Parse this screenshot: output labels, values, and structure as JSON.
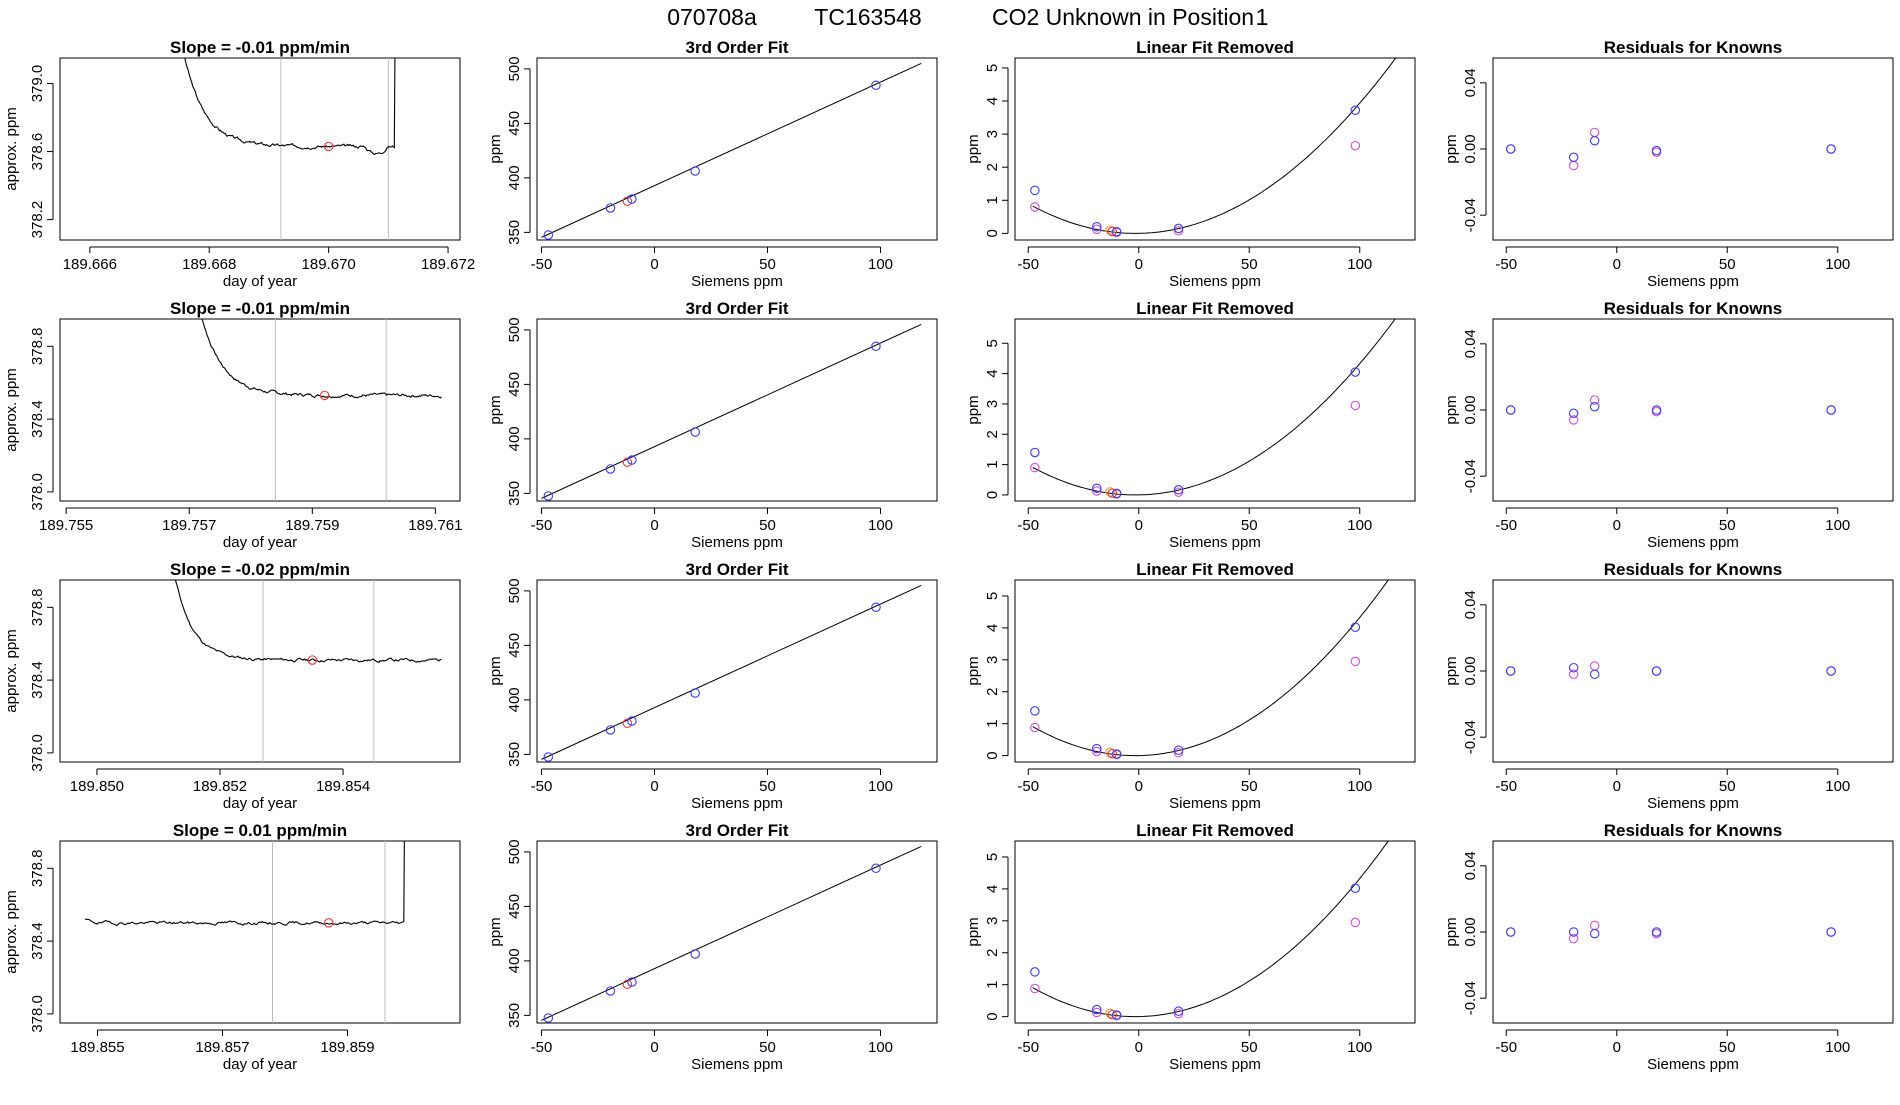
{
  "header": {
    "date": "070708a",
    "tank": "TC163548",
    "label": "CO2 Unknown in Position",
    "position": "1"
  },
  "colors": {
    "trace": "#000000",
    "vline": "#bdbdbd",
    "unknown": "#e53935",
    "known": "#3b3bf0",
    "residual_alt": "#d34fd3",
    "curve": "#000000",
    "orange": "#f0a030"
  },
  "chart_data": [
    {
      "type": "line",
      "title": "Slope =  -0.01  ppm/min",
      "xlabel": "day of year",
      "ylabel": "approx. ppm",
      "xlim": [
        189.6655,
        189.6722
      ],
      "ylim": [
        378.08,
        379.15
      ],
      "xticks": [
        189.666,
        189.668,
        189.67,
        189.672
      ],
      "xtick_labels": [
        "189.666",
        "189.668",
        "189.670",
        "189.672"
      ],
      "yticks": [
        378.2,
        378.6,
        379.0
      ],
      "ytick_labels": [
        "378.2",
        "378.6",
        "379.0"
      ],
      "vlines": [
        189.6692,
        189.671
      ],
      "point": [
        189.67,
        378.63
      ],
      "trace": {
        "start": 189.6675,
        "end": 189.6711,
        "startLevel": 379.3,
        "level": 378.63,
        "tau": 0.00035,
        "noise": 0.008,
        "seed": 3,
        "rise_at": 189.6711,
        "dip": [
          189.6706,
          189.671,
          -0.04
        ]
      }
    },
    {
      "type": "line",
      "title": "Slope =  -0.01  ppm/min",
      "xlabel": "day of year",
      "ylabel": "approx. ppm",
      "xlim": [
        189.7549,
        189.7614
      ],
      "ylim": [
        377.95,
        378.95
      ],
      "xticks": [
        189.755,
        189.757,
        189.759,
        189.761
      ],
      "xtick_labels": [
        "189.755",
        "189.757",
        "189.759",
        "189.761"
      ],
      "yticks": [
        378.0,
        378.4,
        378.8
      ],
      "ytick_labels": [
        "378.0",
        "378.4",
        "378.8"
      ],
      "vlines": [
        189.7584,
        189.7602
      ],
      "point": [
        189.7592,
        378.53
      ],
      "trace": {
        "start": 189.757,
        "end": 189.7611,
        "startLevel": 379.3,
        "level": 378.53,
        "tau": 0.00035,
        "noise": 0.008,
        "seed": 7,
        "rise_at": null,
        "dip": null
      }
    },
    {
      "type": "line",
      "title": "Slope =  -0.02  ppm/min",
      "xlabel": "day of year",
      "ylabel": "approx. ppm",
      "xlim": [
        189.8494,
        189.8559
      ],
      "ylim": [
        377.95,
        378.95
      ],
      "xticks": [
        189.85,
        189.852,
        189.854
      ],
      "xtick_labels": [
        "189.850",
        "189.852",
        "189.854"
      ],
      "yticks": [
        378.0,
        378.4,
        378.8
      ],
      "ytick_labels": [
        "378.0",
        "378.4",
        "378.8"
      ],
      "vlines": [
        189.8527,
        189.8545
      ],
      "point": [
        189.8535,
        378.51
      ],
      "trace": {
        "start": 189.8511,
        "end": 189.8556,
        "startLevel": 379.3,
        "level": 378.51,
        "tau": 0.0003,
        "noise": 0.008,
        "seed": 11,
        "rise_at": null,
        "dip": null
      }
    },
    {
      "type": "line",
      "title": "Slope =  0.01  ppm/min",
      "xlabel": "day of year",
      "ylabel": "approx. ppm",
      "xlim": [
        189.8544,
        189.8608
      ],
      "ylim": [
        377.95,
        378.95
      ],
      "xticks": [
        189.855,
        189.857,
        189.859
      ],
      "xtick_labels": [
        "189.855",
        "189.857",
        "189.859"
      ],
      "yticks": [
        378.0,
        378.4,
        378.8
      ],
      "ytick_labels": [
        "378.0",
        "378.4",
        "378.8"
      ],
      "vlines": [
        189.8578,
        189.8596
      ],
      "point": [
        189.8587,
        378.5
      ],
      "trace": {
        "start": 189.8548,
        "end": 189.8599,
        "startLevel": 378.52,
        "level": 378.5,
        "tau": 0.0001,
        "noise": 0.008,
        "seed": 19,
        "rise_at": 189.8599,
        "dip": null
      }
    },
    {
      "type": "scatter",
      "title": "3rd Order Fit",
      "xlabel": "Siemens ppm",
      "ylabel": "ppm",
      "xlim": [
        -52,
        125
      ],
      "ylim": [
        343,
        510
      ],
      "xticks": [
        -50,
        0,
        50,
        100
      ],
      "yticks": [
        350,
        400,
        450,
        500
      ],
      "line": [
        [
          -50,
          345.4
        ],
        [
          118,
          505
        ]
      ],
      "knowns": [
        [
          -47,
          347.6
        ],
        [
          -19.5,
          372.4
        ],
        [
          -10,
          380.6
        ],
        [
          18,
          406.3
        ],
        [
          98,
          485
        ]
      ],
      "unknown": [
        -12,
        378.6
      ]
    },
    {
      "type": "scatter",
      "title": "3rd Order Fit",
      "xlabel": "Siemens ppm",
      "ylabel": "ppm",
      "xlim": [
        -52,
        125
      ],
      "ylim": [
        343,
        510
      ],
      "xticks": [
        -50,
        0,
        50,
        100
      ],
      "yticks": [
        350,
        400,
        450,
        500
      ],
      "line": [
        [
          -50,
          345.4
        ],
        [
          118,
          505
        ]
      ],
      "knowns": [
        [
          -47,
          347.6
        ],
        [
          -19.5,
          372.4
        ],
        [
          -10,
          380.6
        ],
        [
          18,
          406.3
        ],
        [
          98,
          485
        ]
      ],
      "unknown": [
        -12,
        378.6
      ]
    },
    {
      "type": "scatter",
      "title": "3rd Order Fit",
      "xlabel": "Siemens ppm",
      "ylabel": "ppm",
      "xlim": [
        -52,
        125
      ],
      "ylim": [
        343,
        510
      ],
      "xticks": [
        -50,
        0,
        50,
        100
      ],
      "yticks": [
        350,
        400,
        450,
        500
      ],
      "line": [
        [
          -50,
          345.4
        ],
        [
          118,
          505
        ]
      ],
      "knowns": [
        [
          -47,
          347.6
        ],
        [
          -19.5,
          372.4
        ],
        [
          -10,
          380.6
        ],
        [
          18,
          406.3
        ],
        [
          98,
          485
        ]
      ],
      "unknown": [
        -12,
        378.5
      ]
    },
    {
      "type": "scatter",
      "title": "3rd Order Fit",
      "xlabel": "Siemens ppm",
      "ylabel": "ppm",
      "xlim": [
        -52,
        125
      ],
      "ylim": [
        343,
        510
      ],
      "xticks": [
        -50,
        0,
        50,
        100
      ],
      "yticks": [
        350,
        400,
        450,
        500
      ],
      "line": [
        [
          -50,
          345.4
        ],
        [
          118,
          505
        ]
      ],
      "knowns": [
        [
          -47,
          347.6
        ],
        [
          -19.5,
          372.4
        ],
        [
          -10,
          380.6
        ],
        [
          18,
          406.3
        ],
        [
          98,
          485
        ]
      ],
      "unknown": [
        -12,
        378.5
      ]
    },
    {
      "type": "scatter",
      "title": "Linear Fit Removed",
      "xlabel": "Siemens ppm",
      "ylabel": "ppm",
      "xlim": [
        -56,
        125
      ],
      "ylim": [
        -0.2,
        5.3
      ],
      "xticks": [
        -50,
        0,
        50,
        100
      ],
      "yticks": [
        0,
        1,
        2,
        3,
        4,
        5
      ],
      "curve": {
        "c": 0.000382,
        "x0": -1.5,
        "from": -48,
        "to": 118
      },
      "knowns": [
        [
          -47,
          1.3
        ],
        [
          -19,
          0.2
        ],
        [
          -10,
          0.05
        ],
        [
          18,
          0.15
        ],
        [
          98,
          3.72
        ]
      ],
      "alt": [
        [
          -47,
          0.8
        ],
        [
          -19,
          0.12
        ],
        [
          -10,
          0.03
        ],
        [
          18,
          0.08
        ],
        [
          98,
          2.65
        ]
      ],
      "unknown": [
        -12,
        0.06
      ],
      "orange": [
        -13,
        0.1
      ]
    },
    {
      "type": "scatter",
      "title": "Linear Fit Removed",
      "xlabel": "Siemens ppm",
      "ylabel": "ppm",
      "xlim": [
        -56,
        125
      ],
      "ylim": [
        -0.2,
        5.8
      ],
      "xticks": [
        -50,
        0,
        50,
        100
      ],
      "yticks": [
        0,
        1,
        2,
        3,
        4,
        5
      ],
      "curve": {
        "c": 0.00042,
        "x0": -1.5,
        "from": -48,
        "to": 118
      },
      "knowns": [
        [
          -47,
          1.4
        ],
        [
          -19,
          0.22
        ],
        [
          -10,
          0.05
        ],
        [
          18,
          0.17
        ],
        [
          98,
          4.05
        ]
      ],
      "alt": [
        [
          -47,
          0.9
        ],
        [
          -19,
          0.13
        ],
        [
          -10,
          0.03
        ],
        [
          18,
          0.09
        ],
        [
          98,
          2.95
        ]
      ],
      "unknown": [
        -12,
        0.06
      ],
      "orange": [
        -13,
        0.1
      ]
    },
    {
      "type": "scatter",
      "title": "Linear Fit Removed",
      "xlabel": "Siemens ppm",
      "ylabel": "ppm",
      "xlim": [
        -56,
        125
      ],
      "ylim": [
        -0.2,
        5.5
      ],
      "xticks": [
        -50,
        0,
        50,
        100
      ],
      "yticks": [
        0,
        1,
        2,
        3,
        4,
        5
      ],
      "curve": {
        "c": 0.00042,
        "x0": -1.5,
        "from": -48,
        "to": 118
      },
      "knowns": [
        [
          -47,
          1.4
        ],
        [
          -19,
          0.22
        ],
        [
          -10,
          0.05
        ],
        [
          18,
          0.17
        ],
        [
          98,
          4.02
        ]
      ],
      "alt": [
        [
          -47,
          0.88
        ],
        [
          -19,
          0.13
        ],
        [
          -10,
          0.03
        ],
        [
          18,
          0.09
        ],
        [
          98,
          2.95
        ]
      ],
      "unknown": [
        -12,
        0.06
      ],
      "orange": [
        -13,
        0.1
      ]
    },
    {
      "type": "scatter",
      "title": "Linear Fit Removed",
      "xlabel": "Siemens ppm",
      "ylabel": "ppm",
      "xlim": [
        -56,
        125
      ],
      "ylim": [
        -0.2,
        5.5
      ],
      "xticks": [
        -50,
        0,
        50,
        100
      ],
      "yticks": [
        0,
        1,
        2,
        3,
        4,
        5
      ],
      "curve": {
        "c": 0.00042,
        "x0": -1.5,
        "from": -48,
        "to": 118
      },
      "knowns": [
        [
          -47,
          1.4
        ],
        [
          -19,
          0.22
        ],
        [
          -10,
          0.05
        ],
        [
          18,
          0.17
        ],
        [
          98,
          4.02
        ]
      ],
      "alt": [
        [
          -47,
          0.88
        ],
        [
          -19,
          0.13
        ],
        [
          -10,
          0.03
        ],
        [
          18,
          0.09
        ],
        [
          98,
          2.95
        ]
      ],
      "unknown": [
        -12,
        0.06
      ],
      "orange": [
        -13,
        0.1
      ]
    },
    {
      "type": "scatter",
      "title": "Residuals for Knowns",
      "xlabel": "Siemens ppm",
      "ylabel": "ppm",
      "xlim": [
        -56,
        125
      ],
      "ylim": [
        -0.055,
        0.055
      ],
      "xticks": [
        -50,
        0,
        50,
        100
      ],
      "yticks": [
        -0.04,
        0.0,
        0.04
      ],
      "ytick_labels": [
        "-0.04",
        "0.00",
        "0.04"
      ],
      "knowns": [
        [
          -48,
          0.0
        ],
        [
          -19.5,
          -0.005
        ],
        [
          -10,
          0.005
        ],
        [
          18,
          -0.001
        ],
        [
          97,
          0.0
        ]
      ],
      "alt": [
        [
          -48,
          0.0
        ],
        [
          -19.5,
          -0.01
        ],
        [
          -10,
          0.01
        ],
        [
          18,
          -0.002
        ],
        [
          97,
          0.0
        ]
      ]
    },
    {
      "type": "scatter",
      "title": "Residuals for Knowns",
      "xlabel": "Siemens ppm",
      "ylabel": "ppm",
      "xlim": [
        -56,
        125
      ],
      "ylim": [
        -0.055,
        0.055
      ],
      "xticks": [
        -50,
        0,
        50,
        100
      ],
      "yticks": [
        -0.04,
        0.0,
        0.04
      ],
      "ytick_labels": [
        "-0.04",
        "0.00",
        "0.04"
      ],
      "knowns": [
        [
          -48,
          0.0
        ],
        [
          -19.5,
          -0.002
        ],
        [
          -10,
          0.002
        ],
        [
          18,
          0.0
        ],
        [
          97,
          0.0
        ]
      ],
      "alt": [
        [
          -48,
          0.0
        ],
        [
          -19.5,
          -0.006
        ],
        [
          -10,
          0.006
        ],
        [
          18,
          -0.001
        ],
        [
          97,
          0.0
        ]
      ]
    },
    {
      "type": "scatter",
      "title": "Residuals for Knowns",
      "xlabel": "Siemens ppm",
      "ylabel": "ppm",
      "xlim": [
        -56,
        125
      ],
      "ylim": [
        -0.055,
        0.055
      ],
      "xticks": [
        -50,
        0,
        50,
        100
      ],
      "yticks": [
        -0.04,
        0.0,
        0.04
      ],
      "ytick_labels": [
        "-0.04",
        "0.00",
        "0.04"
      ],
      "knowns": [
        [
          -48,
          0.0
        ],
        [
          -19.5,
          0.002
        ],
        [
          -10,
          -0.002
        ],
        [
          18,
          0.0
        ],
        [
          97,
          0.0
        ]
      ],
      "alt": [
        [
          -48,
          0.0
        ],
        [
          -19.5,
          -0.002
        ],
        [
          -10,
          0.003
        ],
        [
          18,
          0.0
        ],
        [
          97,
          0.0
        ]
      ]
    },
    {
      "type": "scatter",
      "title": "Residuals for Knowns",
      "xlabel": "Siemens ppm",
      "ylabel": "ppm",
      "xlim": [
        -56,
        125
      ],
      "ylim": [
        -0.055,
        0.055
      ],
      "xticks": [
        -50,
        0,
        50,
        100
      ],
      "yticks": [
        -0.04,
        0.0,
        0.04
      ],
      "ytick_labels": [
        "-0.04",
        "0.00",
        "0.04"
      ],
      "knowns": [
        [
          -48,
          0.0
        ],
        [
          -19.5,
          0.0
        ],
        [
          -10,
          -0.001
        ],
        [
          18,
          0.0
        ],
        [
          97,
          0.0
        ]
      ],
      "alt": [
        [
          -48,
          0.0
        ],
        [
          -19.5,
          -0.004
        ],
        [
          -10,
          0.004
        ],
        [
          18,
          -0.001
        ],
        [
          97,
          0.0
        ]
      ]
    }
  ]
}
